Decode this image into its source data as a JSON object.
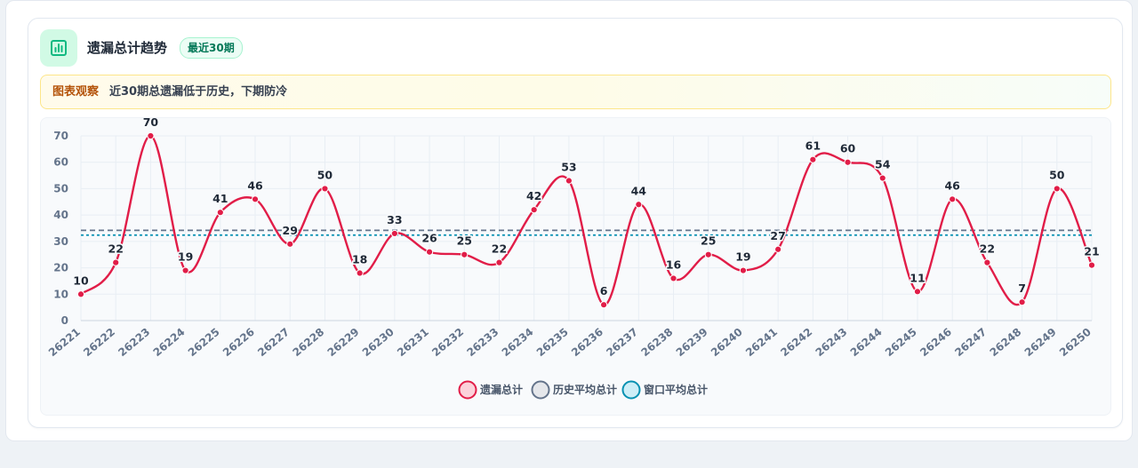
{
  "header": {
    "title": "遗漏总计趋势",
    "badge": "最近30期",
    "icon": "bar-chart-icon"
  },
  "insight": {
    "label": "图表观察",
    "text": "近30期总遗漏低于历史，下期防冷"
  },
  "colors": {
    "series": "#e11d48",
    "history_avg": "#64748b",
    "window_avg": "#0891b2",
    "accent": "#10b981"
  },
  "chart_data": {
    "type": "line",
    "x": [
      "26221",
      "26222",
      "26223",
      "26224",
      "26225",
      "26226",
      "26227",
      "26228",
      "26229",
      "26230",
      "26231",
      "26232",
      "26233",
      "26234",
      "26235",
      "26236",
      "26237",
      "26238",
      "26239",
      "26240",
      "26241",
      "26242",
      "26243",
      "26244",
      "26245",
      "26246",
      "26247",
      "26248",
      "26249",
      "26250"
    ],
    "series": [
      {
        "name": "遗漏总计",
        "values": [
          10,
          22,
          70,
          19,
          41,
          46,
          29,
          50,
          18,
          33,
          26,
          25,
          22,
          42,
          53,
          6,
          44,
          16,
          25,
          19,
          27,
          61,
          60,
          54,
          11,
          46,
          22,
          7,
          50,
          21
        ]
      }
    ],
    "reference_lines": [
      {
        "name": "历史平均总计",
        "value": 34.2,
        "style": "dashed"
      },
      {
        "name": "窗口平均总计",
        "value": 32.4,
        "style": "dotted"
      }
    ],
    "ylim": [
      0,
      70
    ],
    "yticks": [
      0,
      10,
      20,
      30,
      40,
      50,
      60,
      70
    ],
    "grid": true,
    "smooth": true,
    "data_labels": true,
    "legend_position": "bottom"
  }
}
